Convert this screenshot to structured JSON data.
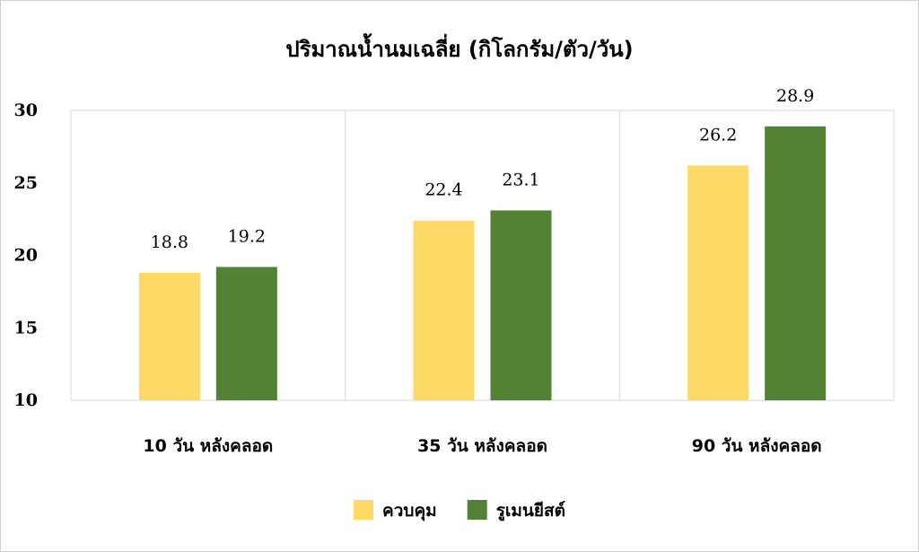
{
  "chart_data": {
    "type": "bar",
    "title": "ปริมาณน้ำนมเฉลี่ย (กิโลกรัม/ตัว/วัน)",
    "categories": [
      "10 วัน หลังคลอด",
      "35 วัน หลังคลอด",
      "90 วัน หลังคลอด"
    ],
    "series": [
      {
        "name": "ควบคุม",
        "values": [
          18.8,
          22.4,
          26.2
        ],
        "color": "#FFD966"
      },
      {
        "name": "รูเมนยีสต์",
        "values": [
          19.2,
          23.1,
          28.9
        ],
        "color": "#548235"
      }
    ],
    "ylim": [
      10,
      30
    ],
    "yticks": [
      "10",
      "15",
      "20",
      "25",
      "30"
    ],
    "data_labels": true,
    "grid": "vertical separators between categories",
    "legend_position": "bottom"
  }
}
